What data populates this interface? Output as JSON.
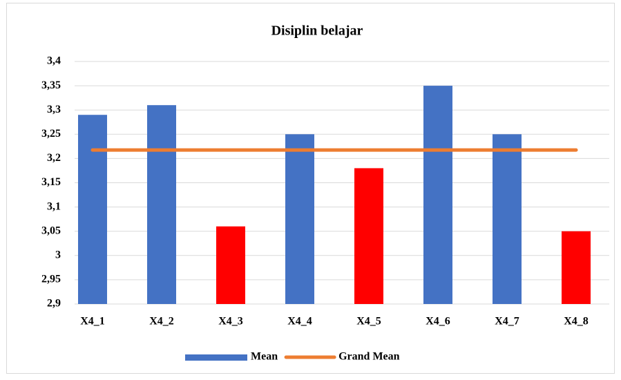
{
  "chart_data": {
    "type": "bar",
    "title": "Disiplin belajar",
    "categories": [
      "X4_1",
      "X4_2",
      "X4_3",
      "X4_4",
      "X4_5",
      "X4_6",
      "X4_7",
      "X4_8"
    ],
    "series": [
      {
        "name": "Mean",
        "type": "bar",
        "color": "#4472c4",
        "values": [
          3.29,
          3.31,
          3.06,
          3.25,
          3.18,
          3.35,
          3.25,
          3.05
        ],
        "colors": [
          "#4472c4",
          "#4472c4",
          "#ff0000",
          "#4472c4",
          "#ff0000",
          "#4472c4",
          "#4472c4",
          "#ff0000"
        ]
      },
      {
        "name": "Grand Mean",
        "type": "line",
        "color": "#ed7d31",
        "values": [
          3.2175,
          3.2175,
          3.2175,
          3.2175,
          3.2175,
          3.2175,
          3.2175,
          3.2175
        ]
      }
    ],
    "ylim": [
      2.9,
      3.4
    ],
    "yticks": [
      {
        "value": 2.9,
        "label": "2,9"
      },
      {
        "value": 2.95,
        "label": "2,95"
      },
      3,
      {
        "value": 3.05,
        "label": "3,05"
      },
      {
        "value": 3.1,
        "label": "3,1"
      },
      {
        "value": 3.15,
        "label": "3,15"
      },
      {
        "value": 3.2,
        "label": "3,2"
      },
      {
        "value": 3.25,
        "label": "3,25"
      },
      {
        "value": 3.3,
        "label": "3,3"
      },
      {
        "value": 3.35,
        "label": "3,35"
      },
      {
        "value": 3.4,
        "label": "3,4"
      }
    ],
    "grid": true,
    "legend": "bottom"
  }
}
